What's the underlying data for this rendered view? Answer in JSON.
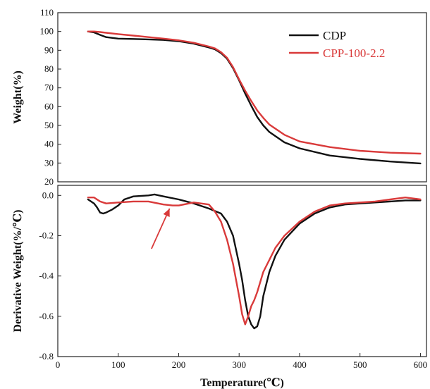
{
  "chart_data": [
    {
      "type": "line",
      "panel": "top",
      "ylabel": "Weight(%)",
      "xlim": [
        0,
        610
      ],
      "ylim": [
        20,
        110
      ],
      "yticks": [
        20,
        30,
        40,
        50,
        60,
        70,
        80,
        90,
        100,
        110
      ],
      "ytick_labels": [
        "20",
        "30",
        "40",
        "50",
        "60",
        "70",
        "80",
        "90",
        "100",
        "110"
      ],
      "legend": {
        "placement": "top-right"
      },
      "series": [
        {
          "name": "CDP",
          "color": "#111111",
          "x": [
            50,
            60,
            70,
            80,
            100,
            125,
            150,
            175,
            200,
            225,
            250,
            260,
            270,
            280,
            290,
            300,
            310,
            320,
            330,
            340,
            350,
            375,
            400,
            450,
            500,
            550,
            600
          ],
          "y": [
            100,
            99.5,
            98.2,
            97,
            96.2,
            96.0,
            95.8,
            95.5,
            94.8,
            93.5,
            91.5,
            90.5,
            88.5,
            85.5,
            80.5,
            74,
            67,
            60.5,
            54.5,
            50,
            46.5,
            41,
            37.8,
            34,
            32.2,
            30.8,
            29.8
          ]
        },
        {
          "name": "CPP-100-2.2",
          "color": "#d93a3a",
          "x": [
            50,
            60,
            70,
            80,
            100,
            125,
            150,
            175,
            200,
            225,
            250,
            260,
            270,
            280,
            290,
            300,
            310,
            320,
            330,
            340,
            350,
            375,
            400,
            450,
            500,
            550,
            600
          ],
          "y": [
            100,
            100,
            99.7,
            99.3,
            98.6,
            97.8,
            97,
            96.2,
            95.3,
            94,
            92,
            91,
            89,
            86,
            81,
            74.5,
            68.5,
            63,
            58,
            54,
            50.5,
            45,
            41.5,
            38.5,
            36.5,
            35.5,
            35
          ]
        }
      ]
    },
    {
      "type": "line",
      "panel": "bottom",
      "xlabel": "Temperature(℃)",
      "ylabel": "Derivative Weight(%/℃)",
      "xlim": [
        0,
        610
      ],
      "ylim": [
        -0.8,
        0.05
      ],
      "xticks": [
        0,
        100,
        200,
        300,
        400,
        500,
        600
      ],
      "xtick_labels": [
        "0",
        "100",
        "200",
        "300",
        "400",
        "500",
        "600"
      ],
      "yticks": [
        -0.8,
        -0.6,
        -0.4,
        -0.2,
        0.0
      ],
      "ytick_labels": [
        "-0.8",
        "-0.6",
        "-0.4",
        "-0.2",
        "0.0"
      ],
      "annotation": {
        "type": "arrow",
        "color": "#d93a3a",
        "from": [
          155,
          -0.265
        ],
        "to": [
          185,
          -0.065
        ]
      },
      "series": [
        {
          "name": "CDP",
          "color": "#111111",
          "x": [
            50,
            60,
            65,
            70,
            75,
            80,
            90,
            100,
            110,
            125,
            150,
            160,
            175,
            200,
            225,
            250,
            270,
            280,
            290,
            295,
            300,
            305,
            310,
            315,
            320,
            325,
            330,
            335,
            340,
            350,
            360,
            375,
            400,
            425,
            450,
            475,
            500,
            525,
            550,
            575,
            600
          ],
          "y": [
            -0.02,
            -0.04,
            -0.06,
            -0.085,
            -0.09,
            -0.085,
            -0.07,
            -0.05,
            -0.02,
            -0.005,
            0.0,
            0.005,
            -0.005,
            -0.02,
            -0.04,
            -0.065,
            -0.09,
            -0.13,
            -0.2,
            -0.27,
            -0.34,
            -0.42,
            -0.52,
            -0.6,
            -0.64,
            -0.66,
            -0.65,
            -0.6,
            -0.5,
            -0.38,
            -0.3,
            -0.22,
            -0.14,
            -0.09,
            -0.06,
            -0.045,
            -0.04,
            -0.035,
            -0.03,
            -0.025,
            -0.025
          ]
        },
        {
          "name": "CPP-100-2.2",
          "color": "#d93a3a",
          "x": [
            50,
            60,
            70,
            80,
            100,
            125,
            150,
            175,
            190,
            200,
            225,
            250,
            260,
            270,
            280,
            290,
            295,
            300,
            305,
            310,
            315,
            320,
            325,
            330,
            340,
            350,
            360,
            375,
            400,
            425,
            450,
            475,
            500,
            525,
            550,
            575,
            600
          ],
          "y": [
            -0.01,
            -0.01,
            -0.03,
            -0.04,
            -0.035,
            -0.03,
            -0.03,
            -0.045,
            -0.05,
            -0.05,
            -0.035,
            -0.045,
            -0.08,
            -0.13,
            -0.22,
            -0.34,
            -0.42,
            -0.5,
            -0.59,
            -0.64,
            -0.6,
            -0.55,
            -0.52,
            -0.48,
            -0.38,
            -0.32,
            -0.26,
            -0.2,
            -0.13,
            -0.08,
            -0.05,
            -0.04,
            -0.035,
            -0.03,
            -0.02,
            -0.01,
            -0.02
          ]
        }
      ]
    }
  ]
}
